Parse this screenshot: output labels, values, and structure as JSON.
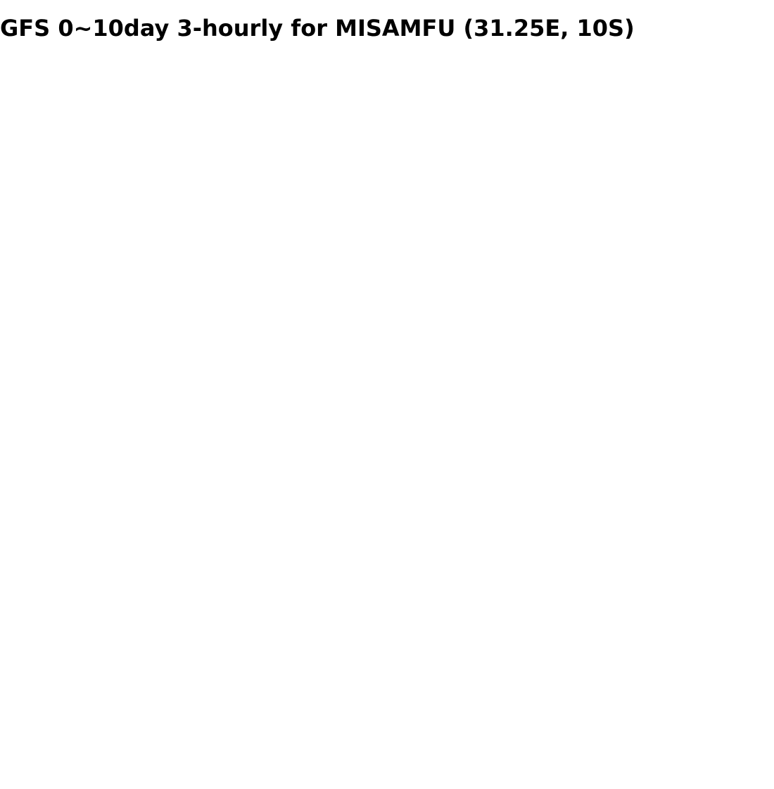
{
  "title": "GFS 0~10day 3-hourly for MISAMFU (31.25E, 10S)"
}
